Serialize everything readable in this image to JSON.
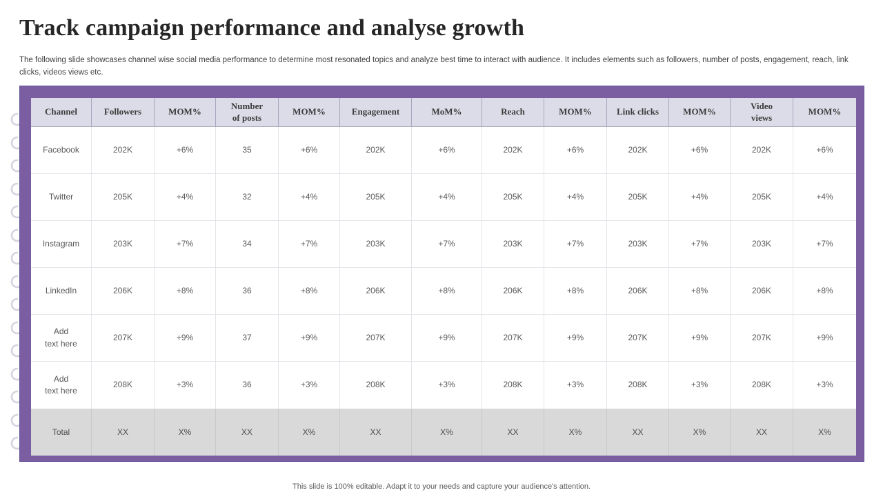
{
  "slide": {
    "title": "Track campaign performance and analyse growth",
    "description": "The following slide showcases channel wise social media performance to determine most resonated topics and analyze best time to interact with audience. It includes elements such as followers, number of posts, engagement, reach, link clicks, videos views etc.",
    "footer": "This slide is 100% editable. Adapt it to your needs and capture your audience's attention."
  },
  "colors": {
    "accent_purple": "#7B5EA1",
    "header_bg": "#DCDCE8",
    "total_row_bg": "#D9D9D9",
    "ring": "#D6D3DE"
  },
  "decorations": {
    "binder_rings": 15
  },
  "table": {
    "headers": [
      "Channel",
      "Followers",
      "MOM%",
      "Number\nof posts",
      "MOM%",
      "Engagement",
      "MoM%",
      "Reach",
      "MOM%",
      "Link clicks",
      "MOM%",
      "Video\nviews",
      "MOM%"
    ],
    "rows": [
      {
        "channel": "Facebook",
        "placeholder": false,
        "cells": [
          "202K",
          "+6%",
          "35",
          "+6%",
          "202K",
          "+6%",
          "202K",
          "+6%",
          "202K",
          "+6%",
          "202K",
          "+6%"
        ]
      },
      {
        "channel": "Twitter",
        "placeholder": false,
        "cells": [
          "205K",
          "+4%",
          "32",
          "+4%",
          "205K",
          "+4%",
          "205K",
          "+4%",
          "205K",
          "+4%",
          "205K",
          "+4%"
        ]
      },
      {
        "channel": "Instagram",
        "placeholder": false,
        "cells": [
          "203K",
          "+7%",
          "34",
          "+7%",
          "203K",
          "+7%",
          "203K",
          "+7%",
          "203K",
          "+7%",
          "203K",
          "+7%"
        ]
      },
      {
        "channel": "LinkedIn",
        "placeholder": false,
        "cells": [
          "206K",
          "+8%",
          "36",
          "+8%",
          "206K",
          "+8%",
          "206K",
          "+8%",
          "206K",
          "+8%",
          "206K",
          "+8%"
        ]
      },
      {
        "channel": "Add\ntext here",
        "placeholder": true,
        "cells": [
          "207K",
          "+9%",
          "37",
          "+9%",
          "207K",
          "+9%",
          "207K",
          "+9%",
          "207K",
          "+9%",
          "207K",
          "+9%"
        ]
      },
      {
        "channel": "Add\ntext here",
        "placeholder": true,
        "cells": [
          "208K",
          "+3%",
          "36",
          "+3%",
          "208K",
          "+3%",
          "208K",
          "+3%",
          "208K",
          "+3%",
          "208K",
          "+3%"
        ]
      }
    ],
    "total_row": {
      "label": "Total",
      "cells": [
        "XX",
        "X%",
        "XX",
        "X%",
        "XX",
        "X%",
        "XX",
        "X%",
        "XX",
        "X%",
        "XX",
        "X%"
      ]
    }
  }
}
